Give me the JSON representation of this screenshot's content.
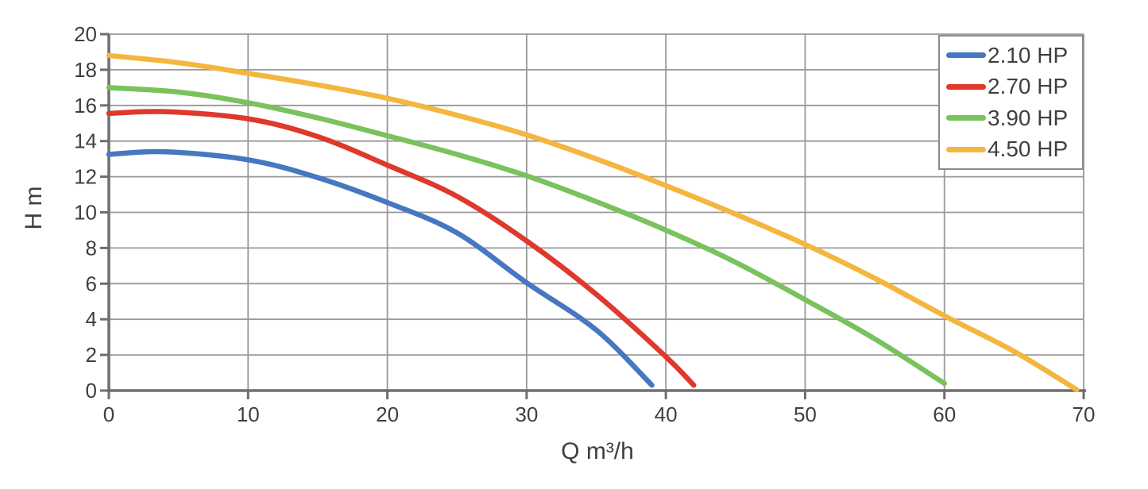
{
  "chart_data": {
    "type": "line",
    "title": "",
    "xlabel": "Q  m³/h",
    "ylabel": "H  m",
    "xlim": [
      0,
      70
    ],
    "ylim": [
      0,
      20
    ],
    "x_ticks": [
      0,
      10,
      20,
      30,
      40,
      50,
      60,
      70
    ],
    "y_ticks": [
      0,
      2,
      4,
      6,
      8,
      10,
      12,
      14,
      16,
      18,
      20
    ],
    "grid": true,
    "legend_position": "top-right-inside",
    "series": [
      {
        "name": "2.10 HP",
        "color": "#4777C0",
        "points": [
          [
            0,
            13.25
          ],
          [
            4,
            13.4
          ],
          [
            10,
            12.95
          ],
          [
            15,
            11.95
          ],
          [
            20,
            10.55
          ],
          [
            25,
            8.85
          ],
          [
            30,
            6.05
          ],
          [
            35,
            3.4
          ],
          [
            39,
            0.3
          ]
        ]
      },
      {
        "name": "2.70 HP",
        "color": "#DF382C",
        "points": [
          [
            0,
            15.55
          ],
          [
            4,
            15.65
          ],
          [
            10,
            15.25
          ],
          [
            15,
            14.25
          ],
          [
            20,
            12.65
          ],
          [
            25,
            10.9
          ],
          [
            30,
            8.4
          ],
          [
            35,
            5.4
          ],
          [
            40,
            1.9
          ],
          [
            42,
            0.3
          ]
        ]
      },
      {
        "name": "3.90 HP",
        "color": "#79C25D",
        "points": [
          [
            0,
            17.0
          ],
          [
            5,
            16.75
          ],
          [
            10,
            16.15
          ],
          [
            15,
            15.3
          ],
          [
            20,
            14.3
          ],
          [
            25,
            13.25
          ],
          [
            30,
            12.05
          ],
          [
            35,
            10.6
          ],
          [
            40,
            9.0
          ],
          [
            45,
            7.2
          ],
          [
            50,
            5.1
          ],
          [
            55,
            2.9
          ],
          [
            60,
            0.4
          ]
        ]
      },
      {
        "name": "4.50 HP",
        "color": "#F4B63F",
        "points": [
          [
            0,
            18.8
          ],
          [
            5,
            18.4
          ],
          [
            10,
            17.8
          ],
          [
            15,
            17.15
          ],
          [
            20,
            16.4
          ],
          [
            25,
            15.45
          ],
          [
            30,
            14.35
          ],
          [
            35,
            13.0
          ],
          [
            40,
            11.5
          ],
          [
            45,
            9.9
          ],
          [
            50,
            8.2
          ],
          [
            55,
            6.3
          ],
          [
            60,
            4.2
          ],
          [
            65,
            2.2
          ],
          [
            69.5,
            0.05
          ]
        ]
      }
    ]
  },
  "legend": {
    "items": [
      "2.10 HP",
      "2.70 HP",
      "3.90 HP",
      "4.50 HP"
    ]
  },
  "colors": {
    "background": "#ffffff",
    "axis": "#6e6e6e",
    "gridline": "#999999",
    "text": "#3f3f3f",
    "legend_border": "#8c8c8c"
  }
}
